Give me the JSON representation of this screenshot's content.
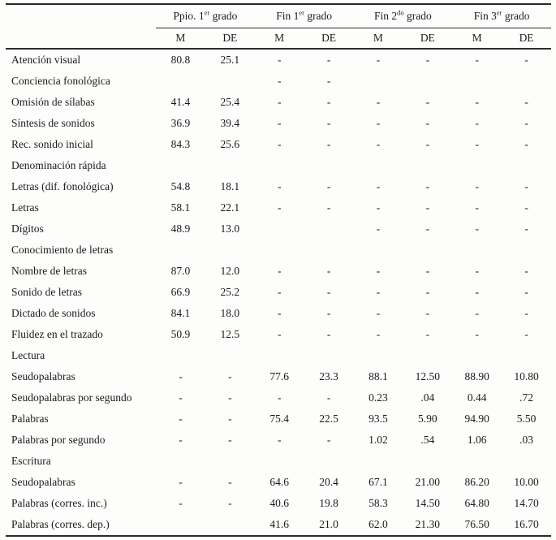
{
  "table": {
    "groups": [
      {
        "prefix": "Ppio. 1",
        "sup": "er",
        "suffix": " grado"
      },
      {
        "prefix": "Fin 1",
        "sup": "er",
        "suffix": " grado"
      },
      {
        "prefix": "Fin 2",
        "sup": "do",
        "suffix": " grado"
      },
      {
        "prefix": "Fin 3",
        "sup": "er",
        "suffix": " grado"
      }
    ],
    "subheaders": [
      "M",
      "DE",
      "M",
      "DE",
      "M",
      "DE",
      "M",
      "DE"
    ],
    "rows": [
      {
        "label": "Atención visual",
        "section": false,
        "values": [
          "80.8",
          "25.1",
          "-",
          "-",
          "-",
          "-",
          "-",
          "-"
        ]
      },
      {
        "label": "Conciencia fonológica",
        "section": true,
        "values": [
          "",
          "",
          "-",
          "-",
          "",
          "",
          "",
          ""
        ]
      },
      {
        "label": "Omisión de sílabas",
        "section": false,
        "values": [
          "41.4",
          "25.4",
          "-",
          "-",
          "-",
          "-",
          "-",
          "-"
        ]
      },
      {
        "label": "Síntesis de sonidos",
        "section": false,
        "values": [
          "36.9",
          "39.4",
          "-",
          "-",
          "-",
          "-",
          "-",
          "-"
        ]
      },
      {
        "label": "Rec. sonido inicial",
        "section": false,
        "values": [
          "84.3",
          "25.6",
          "-",
          "-",
          "-",
          "-",
          "-",
          "-"
        ]
      },
      {
        "label": "Denominación rápida",
        "section": true,
        "values": [
          "",
          "",
          "",
          "",
          "",
          "",
          "",
          ""
        ]
      },
      {
        "label": "Letras (dif. fonológica)",
        "section": false,
        "values": [
          "54.8",
          "18.1",
          "-",
          "-",
          "-",
          "-",
          "-",
          "-"
        ]
      },
      {
        "label": "Letras",
        "section": false,
        "values": [
          "58.1",
          "22.1",
          "-",
          "-",
          "-",
          "-",
          "-",
          "-"
        ]
      },
      {
        "label": "Dígitos",
        "section": false,
        "values": [
          "48.9",
          "13.0",
          "",
          "",
          "-",
          "-",
          "-",
          "-"
        ]
      },
      {
        "label": "Conocimiento de letras",
        "section": true,
        "values": [
          "",
          "",
          "",
          "",
          "",
          "",
          "",
          ""
        ]
      },
      {
        "label": "Nombre de letras",
        "section": false,
        "values": [
          "87.0",
          "12.0",
          "-",
          "-",
          "-",
          "-",
          "-",
          "-"
        ]
      },
      {
        "label": "Sonido de letras",
        "section": false,
        "values": [
          "66.9",
          "25.2",
          "-",
          "-",
          "-",
          "-",
          "-",
          "-"
        ]
      },
      {
        "label": "Dictado de sonidos",
        "section": false,
        "values": [
          "84.1",
          "18.0",
          "-",
          "-",
          "-",
          "-",
          "-",
          "-"
        ]
      },
      {
        "label": "Fluidez en el trazado",
        "section": false,
        "values": [
          "50.9",
          "12.5",
          "-",
          "-",
          "-",
          "-",
          "-",
          "-"
        ]
      },
      {
        "label": "Lectura",
        "section": true,
        "values": [
          "",
          "",
          "",
          "",
          "",
          "",
          "",
          ""
        ]
      },
      {
        "label": "Seudopalabras",
        "section": false,
        "values": [
          "-",
          "-",
          "77.6",
          "23.3",
          "88.1",
          "12.50",
          "88.90",
          "10.80"
        ]
      },
      {
        "label": "Seudopalabras por segundo",
        "section": false,
        "values": [
          "-",
          "-",
          "-",
          "-",
          "0.23",
          ".04",
          "0.44",
          ".72"
        ]
      },
      {
        "label": "Palabras",
        "section": false,
        "values": [
          "-",
          "-",
          "75.4",
          "22.5",
          "93.5",
          "5.90",
          "94.90",
          "5.50"
        ]
      },
      {
        "label": "Palabras por segundo",
        "section": false,
        "values": [
          "-",
          "-",
          "-",
          "-",
          "1.02",
          ".54",
          "1.06",
          ".03"
        ]
      },
      {
        "label": "Escritura",
        "section": true,
        "values": [
          "",
          "",
          "",
          "",
          "",
          "",
          "",
          ""
        ]
      },
      {
        "label": "Seudopalabras",
        "section": false,
        "values": [
          "-",
          "-",
          "64.6",
          "20.4",
          "67.1",
          "21.00",
          "86.20",
          "10.00"
        ]
      },
      {
        "label": "Palabras (corres. inc.)",
        "section": false,
        "values": [
          "-",
          "-",
          "40.6",
          "19.8",
          "58.3",
          "14.50",
          "64.80",
          "14.70"
        ]
      },
      {
        "label": "Palabras (corres. dep.)",
        "section": false,
        "values": [
          "",
          "",
          "41.6",
          "21.0",
          "62.0",
          "21.30",
          "76.50",
          "16.70"
        ]
      }
    ],
    "colors": {
      "rule": "#2b2b2b",
      "text": "#1b1b1b",
      "background": "#fdfdfc"
    }
  }
}
